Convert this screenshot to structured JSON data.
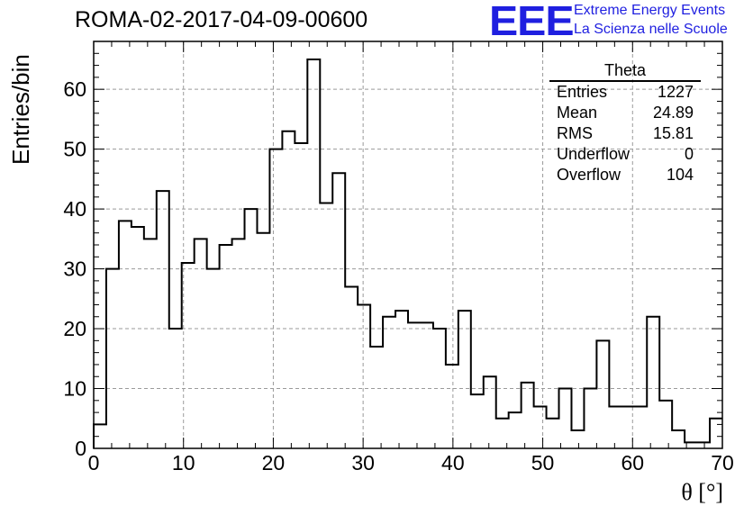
{
  "header": {
    "title": "ROMA-02-2017-04-09-00600"
  },
  "logo": {
    "mark": "EEE",
    "line1": "Extreme Energy Events",
    "line2": "La Scienza nelle Scuole"
  },
  "stats": {
    "name": "Theta",
    "rows": [
      {
        "label": "Entries",
        "value": "1227"
      },
      {
        "label": "Mean",
        "value": "24.89"
      },
      {
        "label": "RMS",
        "value": "15.81"
      },
      {
        "label": "Underflow",
        "value": "0"
      },
      {
        "label": "Overflow",
        "value": "104"
      }
    ]
  },
  "chart_data": {
    "type": "bar",
    "style": "step-histogram",
    "xlabel": "θ [°]",
    "ylabel": "Entries/bin",
    "xlim": [
      0,
      70
    ],
    "ylim": [
      0,
      68
    ],
    "xticks": [
      0,
      10,
      20,
      30,
      40,
      50,
      60,
      70
    ],
    "yticks": [
      0,
      10,
      20,
      30,
      40,
      50,
      60
    ],
    "grid": true,
    "bin_width": 1.4,
    "bin_edges_start": 0,
    "values": [
      4,
      30,
      38,
      37,
      35,
      43,
      20,
      31,
      35,
      30,
      34,
      35,
      40,
      36,
      50,
      53,
      51,
      65,
      41,
      46,
      27,
      24,
      17,
      22,
      23,
      21,
      21,
      20,
      14,
      23,
      9,
      12,
      5,
      6,
      11,
      7,
      5,
      10,
      3,
      10,
      18,
      7,
      7,
      7,
      22,
      8,
      3,
      1,
      1,
      5
    ],
    "line_color": "#000000",
    "grid_color": "#9a9a9a"
  }
}
